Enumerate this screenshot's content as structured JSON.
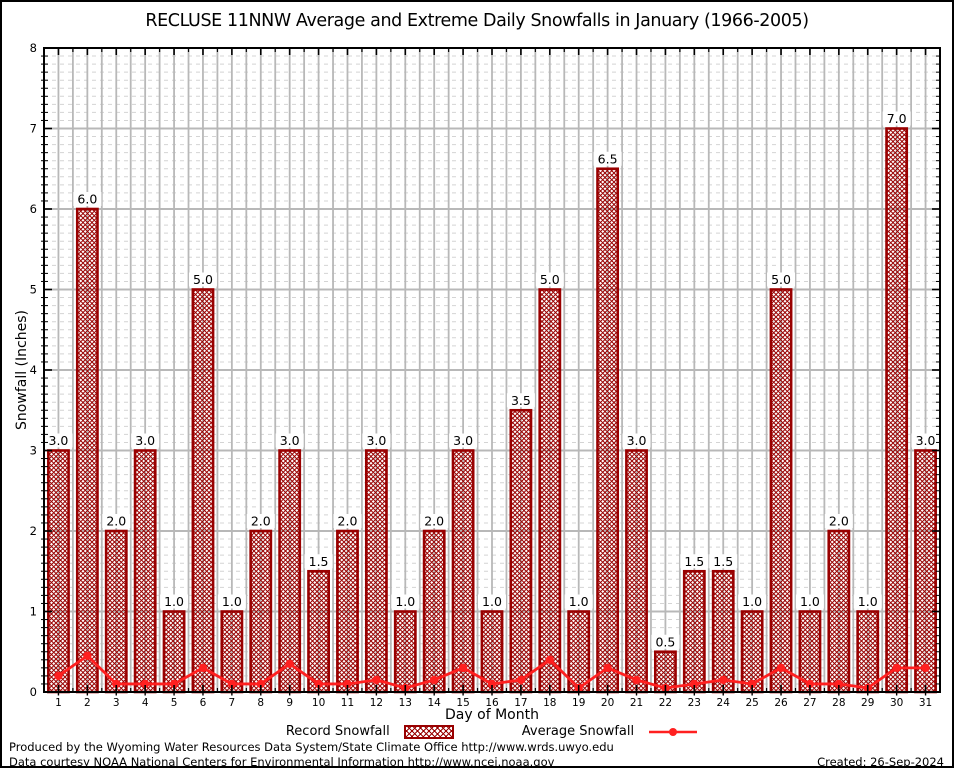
{
  "title": "RECLUSE 11NNW Average and Extreme Daily Snowfalls in January (1966-2005)",
  "axes": {
    "y_label": "Snowfall (Inches)",
    "x_label": "Day of Month"
  },
  "legend": {
    "record_label": "Record Snowfall",
    "average_label": "Average Snowfall"
  },
  "footer": {
    "line1": "Produced by the Wyoming Water Resources Data System/State Climate Office http://www.wrds.uwyo.edu",
    "line2": "Data courtesy NOAA National Centers for Environmental Information http://www.ncei.noaa.gov",
    "created": "Created: 26-Sep-2024"
  },
  "colors": {
    "bar_border": "#990000",
    "bar_hatch": "#990000",
    "average_line": "#ff2020",
    "grid_major": "#b8b8b8",
    "grid_minor": "#d4d4d4",
    "axis": "#000000",
    "label_text": "#000000"
  },
  "chart_data": {
    "type": "bar",
    "title": "RECLUSE 11NNW Average and Extreme Daily Snowfalls in January (1966-2005)",
    "xlabel": "Day of Month",
    "ylabel": "Snowfall (Inches)",
    "x": [
      1,
      2,
      3,
      4,
      5,
      6,
      7,
      8,
      9,
      10,
      11,
      12,
      13,
      14,
      15,
      16,
      17,
      18,
      19,
      20,
      21,
      22,
      23,
      24,
      25,
      26,
      27,
      28,
      29,
      30,
      31
    ],
    "xlim": [
      0.5,
      31.5
    ],
    "ylim": [
      0,
      8
    ],
    "yticks": [
      0,
      1,
      2,
      3,
      4,
      5,
      6,
      7,
      8
    ],
    "grid": {
      "major": true,
      "minor_y_step": 0.1,
      "vertical_x_step": 0.5
    },
    "legend_position": "bottom-center",
    "series": [
      {
        "name": "Record Snowfall",
        "type": "bar",
        "bar_width_days": 0.7,
        "value_labels_shown": true,
        "values": [
          3.0,
          6.0,
          2.0,
          3.0,
          1.0,
          5.0,
          1.0,
          2.0,
          3.0,
          1.5,
          2.0,
          3.0,
          1.0,
          2.0,
          3.0,
          1.0,
          3.5,
          5.0,
          1.0,
          6.5,
          3.0,
          0.5,
          1.5,
          1.5,
          1.0,
          5.0,
          1.0,
          2.0,
          1.0,
          7.0,
          3.0
        ]
      },
      {
        "name": "Average Snowfall",
        "type": "line",
        "marker": "filled-circle",
        "values": [
          0.2,
          0.45,
          0.1,
          0.1,
          0.1,
          0.3,
          0.1,
          0.1,
          0.35,
          0.1,
          0.1,
          0.15,
          0.05,
          0.15,
          0.3,
          0.1,
          0.15,
          0.4,
          0.05,
          0.3,
          0.15,
          0.05,
          0.1,
          0.15,
          0.1,
          0.3,
          0.1,
          0.1,
          0.05,
          0.3,
          0.3
        ]
      }
    ]
  }
}
